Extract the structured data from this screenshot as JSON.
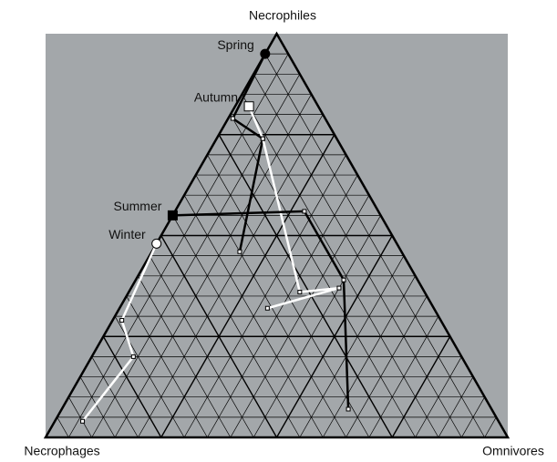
{
  "chart_data": {
    "type": "ternary",
    "axes": [
      "Necrophiles",
      "Necrophages",
      "Omnivores"
    ],
    "grid": true,
    "grid_step": 5,
    "major_step": 25,
    "background": "#a3a7aa",
    "series": [
      {
        "name": "Spring",
        "color": "#000000",
        "marker": "circle",
        "values": [
          [
            95,
            5,
            0
          ],
          [
            79,
            20,
            1
          ],
          [
            74,
            16,
            10
          ],
          [
            46,
            35,
            19
          ]
        ]
      },
      {
        "name": "Autumn",
        "color": "#ffffff",
        "marker": "square",
        "values": [
          [
            82,
            15,
            3
          ],
          [
            74,
            16,
            10
          ],
          [
            36,
            27,
            37
          ],
          [
            37,
            18,
            45
          ],
          [
            32,
            36,
            32
          ]
        ]
      },
      {
        "name": "Summer",
        "color": "#000000",
        "marker": "square",
        "values": [
          [
            55,
            45,
            0
          ],
          [
            56,
            16,
            28
          ],
          [
            39,
            16,
            45
          ],
          [
            7,
            31,
            62
          ]
        ]
      },
      {
        "name": "Winter",
        "color": "#ffffff",
        "marker": "circle",
        "values": [
          [
            48,
            52,
            0
          ],
          [
            29,
            69,
            2
          ],
          [
            20,
            71,
            9
          ],
          [
            4,
            90,
            6
          ]
        ]
      }
    ]
  }
}
